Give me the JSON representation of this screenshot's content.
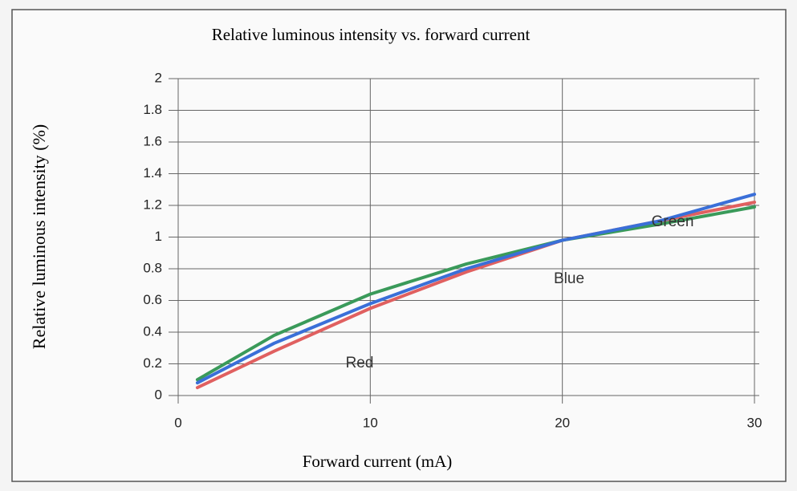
{
  "chart_data": {
    "type": "line",
    "title": "Relative luminous intensity vs. forward current",
    "xlabel": "Forward current (mA)",
    "ylabel": "Relative luminous intensity (%)",
    "x": [
      1,
      5,
      10,
      15,
      20,
      25,
      30
    ],
    "series": [
      {
        "name": "Red",
        "color": "#e06060",
        "values": [
          0.05,
          0.28,
          0.55,
          0.78,
          0.98,
          1.1,
          1.22
        ]
      },
      {
        "name": "Green",
        "color": "#3a9a5a",
        "values": [
          0.1,
          0.38,
          0.64,
          0.83,
          0.98,
          1.08,
          1.19
        ]
      },
      {
        "name": "Blue",
        "color": "#3a6fd8",
        "values": [
          0.08,
          0.33,
          0.58,
          0.8,
          0.98,
          1.1,
          1.27
        ]
      }
    ],
    "xlim": [
      0,
      30
    ],
    "xticks": [
      0,
      10,
      20,
      30
    ],
    "ylim": [
      0,
      2
    ],
    "yticks": [
      0,
      0.2,
      0.4,
      0.6,
      0.8,
      1,
      1.2,
      1.4,
      1.6,
      1.8,
      2
    ],
    "grid": true
  }
}
